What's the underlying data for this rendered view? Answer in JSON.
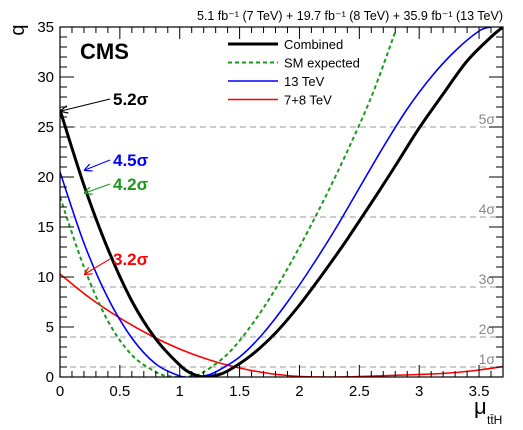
{
  "header": {
    "luminosity": "5.1 fb⁻¹ (7 TeV) + 19.7 fb⁻¹ (8 TeV) + 35.9 fb⁻¹ (13 TeV)"
  },
  "experiment_label": "CMS",
  "chart_data": {
    "type": "line",
    "xlabel": "μ_tt̄H",
    "ylabel": "q",
    "xlim": [
      0,
      3.7
    ],
    "ylim": [
      0,
      35
    ],
    "x_ticks": [
      0,
      0.5,
      1,
      1.5,
      2,
      2.5,
      3,
      3.5
    ],
    "x_tick_labels": [
      "0",
      "0.5",
      "1",
      "1.5",
      "2",
      "2.5",
      "3",
      "3.5"
    ],
    "y_ticks": [
      0,
      5,
      10,
      15,
      20,
      25,
      30,
      35
    ],
    "y_tick_labels": [
      "0",
      "5",
      "10",
      "15",
      "20",
      "25",
      "30",
      "35"
    ],
    "grid": false,
    "legend_position": "top-center",
    "significance_lines": [
      {
        "q": 1,
        "label": "1σ"
      },
      {
        "q": 4,
        "label": "2σ"
      },
      {
        "q": 9,
        "label": "3σ"
      },
      {
        "q": 16,
        "label": "4σ"
      },
      {
        "q": 25,
        "label": "5σ"
      }
    ],
    "series": [
      {
        "name": "Combined",
        "color": "#000000",
        "style": "solid",
        "x": [
          0,
          0.2,
          0.4,
          0.6,
          0.8,
          1.0,
          1.1,
          1.2,
          1.3,
          1.4,
          1.6,
          1.8,
          2.0,
          2.2,
          2.4,
          2.6,
          2.8,
          3.0,
          3.2,
          3.4,
          3.6,
          3.7
        ],
        "y": [
          26.7,
          19.2,
          12.8,
          7.6,
          3.8,
          1.2,
          0.35,
          0.0,
          0.15,
          0.6,
          2.2,
          4.4,
          7.2,
          10.4,
          13.8,
          17.4,
          21.1,
          24.9,
          28.3,
          31.6,
          34.0,
          35.0
        ]
      },
      {
        "name": "SM expected",
        "color": "#1a9a1a",
        "style": "dashed",
        "x": [
          0,
          0.2,
          0.4,
          0.6,
          0.8,
          0.9,
          1.0,
          1.1,
          1.2,
          1.4,
          1.6,
          1.8,
          2.0,
          2.2,
          2.4,
          2.6,
          2.8
        ],
        "y": [
          18.0,
          11.0,
          5.6,
          2.2,
          0.5,
          0.1,
          0.0,
          0.1,
          0.5,
          2.3,
          5.2,
          8.8,
          13.0,
          17.6,
          22.6,
          28.0,
          34.5
        ]
      },
      {
        "name": "13 TeV",
        "color": "#0000ff",
        "style": "solid",
        "x": [
          0,
          0.2,
          0.4,
          0.6,
          0.8,
          1.0,
          1.1,
          1.2,
          1.3,
          1.5,
          1.7,
          1.9,
          2.1,
          2.3,
          2.5,
          2.7,
          2.9,
          3.1,
          3.3,
          3.5,
          3.6
        ],
        "y": [
          20.5,
          13.4,
          7.9,
          3.9,
          1.3,
          0.1,
          0.0,
          0.1,
          0.5,
          2.0,
          4.4,
          7.5,
          11.0,
          14.8,
          18.9,
          23.0,
          26.8,
          30.0,
          32.6,
          34.6,
          35.0
        ]
      },
      {
        "name": "7+8 TeV",
        "color": "#ff0000",
        "style": "solid",
        "x": [
          0,
          0.25,
          0.5,
          0.75,
          1.0,
          1.25,
          1.5,
          1.75,
          2.0,
          2.25,
          2.5,
          2.75,
          3.0,
          3.25,
          3.5,
          3.7
        ],
        "y": [
          10.3,
          7.9,
          5.9,
          4.2,
          2.8,
          1.7,
          0.9,
          0.35,
          0.06,
          0.0,
          0.05,
          0.15,
          0.25,
          0.4,
          0.7,
          1.05
        ]
      }
    ],
    "annotations": [
      {
        "text": "5.2σ",
        "color": "#000000",
        "target_x": 0,
        "target_y": 26.7
      },
      {
        "text": "4.5σ",
        "color": "#0000ff",
        "target_x": 0.2,
        "target_y": 20.8
      },
      {
        "text": "4.2σ",
        "color": "#1a9a1a",
        "target_x": 0.2,
        "target_y": 18.5
      },
      {
        "text": "3.2σ",
        "color": "#ff0000",
        "target_x": 0.2,
        "target_y": 10.4
      }
    ]
  }
}
